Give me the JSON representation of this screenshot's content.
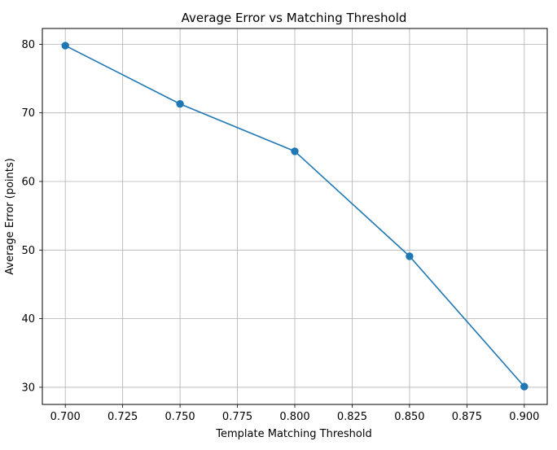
{
  "chart_data": {
    "type": "line",
    "title": "Average Error vs Matching Threshold",
    "xlabel": "Template Matching Threshold",
    "ylabel": "Average Error (points)",
    "x": [
      0.7,
      0.75,
      0.8,
      0.85,
      0.9
    ],
    "series": [
      {
        "values": [
          79.8,
          71.3,
          64.4,
          49.1,
          30.1
        ],
        "color": "#1f77b4",
        "marker": "circle"
      }
    ],
    "xlim": [
      0.69,
      0.91
    ],
    "ylim": [
      27.5,
      82.3
    ],
    "x_ticks": [
      0.7,
      0.725,
      0.75,
      0.775,
      0.8,
      0.825,
      0.85,
      0.875,
      0.9
    ],
    "x_tick_labels": [
      "0.700",
      "0.725",
      "0.750",
      "0.775",
      "0.800",
      "0.825",
      "0.850",
      "0.875",
      "0.900"
    ],
    "y_ticks": [
      30,
      40,
      50,
      60,
      70,
      80
    ],
    "y_tick_labels": [
      "30",
      "40",
      "50",
      "60",
      "70",
      "80"
    ],
    "grid": true,
    "legend": "none"
  }
}
